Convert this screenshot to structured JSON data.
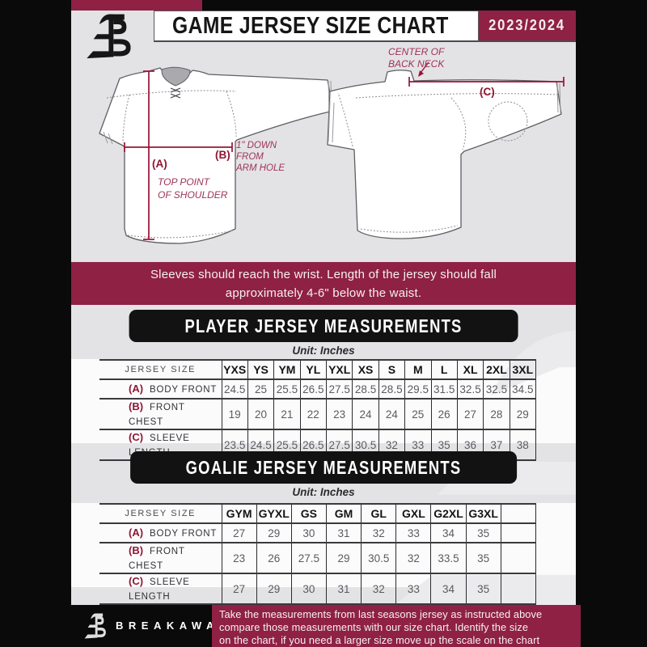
{
  "header": {
    "title": "GAME JERSEY SIZE CHART",
    "season": "2023/2024"
  },
  "diagram": {
    "front": {
      "label_a": "(A)",
      "label_b": "(B)",
      "note_a": [
        "TOP POINT",
        "OF SHOULDER"
      ],
      "note_b": [
        "1\" DOWN",
        "FROM",
        "ARM HOLE"
      ]
    },
    "back": {
      "label_c": "(C)",
      "note_c": [
        "CENTER OF",
        "BACK NECK"
      ]
    }
  },
  "notice": {
    "lines": [
      "Sleeves should reach the wrist. Length of the jersey should fall",
      "approximately 4-6\" below the waist."
    ]
  },
  "player_section": {
    "title": "PLAYER JERSEY MEASUREMENTS",
    "unit": "Unit: Inches",
    "table": {
      "header_label": "JERSEY SIZE",
      "sizes": [
        "YXS",
        "YS",
        "YM",
        "YL",
        "YXL",
        "XS",
        "S",
        "M",
        "L",
        "XL",
        "2XL",
        "3XL"
      ],
      "rows": [
        {
          "key": "(A)",
          "label": "BODY FRONT",
          "values": [
            "24.5",
            "25",
            "25.5",
            "26.5",
            "27.5",
            "28.5",
            "28.5",
            "29.5",
            "31.5",
            "32.5",
            "32.5",
            "34.5"
          ]
        },
        {
          "key": "(B)",
          "label": "FRONT CHEST",
          "values": [
            "19",
            "20",
            "21",
            "22",
            "23",
            "24",
            "24",
            "25",
            "26",
            "27",
            "28",
            "29"
          ]
        },
        {
          "key": "(C)",
          "label": "SLEEVE LENGTH",
          "values": [
            "23.5",
            "24.5",
            "25.5",
            "26.5",
            "27.5",
            "30.5",
            "32",
            "33",
            "35",
            "36",
            "37",
            "38"
          ]
        }
      ]
    }
  },
  "goalie_section": {
    "title": "GOALIE JERSEY MEASUREMENTS",
    "unit": "Unit: Inches",
    "table": {
      "header_label": "JERSEY SIZE",
      "sizes": [
        "GYM",
        "GYXL",
        "GS",
        "GM",
        "GL",
        "GXL",
        "G2XL",
        "G3XL",
        ""
      ],
      "rows": [
        {
          "key": "(A)",
          "label": "BODY FRONT",
          "values": [
            "27",
            "29",
            "30",
            "31",
            "32",
            "33",
            "34",
            "35",
            ""
          ]
        },
        {
          "key": "(B)",
          "label": "FRONT CHEST",
          "values": [
            "23",
            "26",
            "27.5",
            "29",
            "30.5",
            "32",
            "33.5",
            "35",
            ""
          ]
        },
        {
          "key": "(C)",
          "label": "SLEEVE LENGTH",
          "values": [
            "27",
            "29",
            "30",
            "31",
            "32",
            "33",
            "34",
            "35",
            ""
          ]
        }
      ]
    }
  },
  "footer": {
    "brand": "BREAKAWAY",
    "lines": [
      "Take the measurements from last seasons jersey as instructed above",
      "compare those measurements  with our size chart. Identify the size",
      "on the chart, if you need a larger size move up the scale on the chart"
    ]
  },
  "colors": {
    "maroon": "#8e2144",
    "measure_line": "#9b1236",
    "black": "#0a0a0b",
    "panel_gray": "#e3e3e5",
    "table_band": "#fbfbfc",
    "watermark": "#ebebed"
  }
}
